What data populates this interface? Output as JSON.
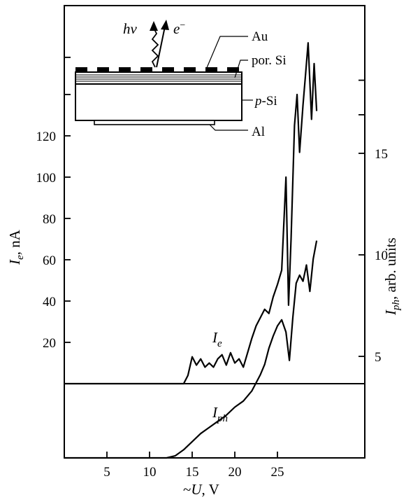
{
  "chart_data": {
    "type": "line",
    "title": "",
    "x_axis": {
      "label_prefix": "~",
      "label_var": "U",
      "label_unit": ", V",
      "range": [
        0,
        35
      ],
      "ticks": [
        5,
        10,
        15,
        20,
        25
      ]
    },
    "y_left": {
      "label_var": "I",
      "label_sub": "e",
      "label_unit": ", nA",
      "range": [
        0,
        170
      ],
      "ticks": [
        20,
        40,
        60,
        80,
        100,
        120
      ]
    },
    "y_right": {
      "label_var": "I",
      "label_sub": "ph",
      "label_unit": ", arb. units",
      "range": [
        0,
        19
      ],
      "ticks": [
        5,
        10,
        15
      ]
    },
    "baseline_value": 0,
    "series": [
      {
        "name_var": "I",
        "name_sub": "e",
        "axis": "left",
        "x": [
          0,
          14,
          14.5,
          15,
          15.5,
          16,
          16.5,
          17,
          17.5,
          18,
          18.5,
          19,
          19.5,
          20,
          20.5,
          21,
          21.5,
          22,
          22.5,
          23,
          23.5,
          24,
          24.5,
          25,
          25.5,
          26,
          26.3,
          26.6,
          27,
          27.3,
          27.6,
          28,
          28.3,
          28.6,
          29,
          29.3,
          29.6
        ],
        "y": [
          0,
          0,
          4,
          13,
          9,
          12,
          8,
          10,
          8,
          12,
          14,
          9,
          15,
          10,
          12,
          8,
          15,
          22,
          28,
          32,
          36,
          34,
          42,
          48,
          55,
          100,
          38,
          70,
          125,
          140,
          112,
          135,
          150,
          165,
          128,
          155,
          132
        ]
      },
      {
        "name_var": "I",
        "name_sub": "ph",
        "axis": "right",
        "x": [
          0,
          12,
          13,
          14,
          15,
          16,
          17,
          18,
          19,
          20,
          21,
          22,
          23,
          23.5,
          24,
          24.5,
          25,
          25.5,
          26,
          26.4,
          26.8,
          27.2,
          27.6,
          28,
          28.4,
          28.8,
          29.2,
          29.6
        ],
        "y": [
          0,
          0,
          0.1,
          0.4,
          0.8,
          1.2,
          1.5,
          1.8,
          2.1,
          2.5,
          2.8,
          3.3,
          4.1,
          4.6,
          5.4,
          6.0,
          6.5,
          6.8,
          6.2,
          4.8,
          6.9,
          8.6,
          9.0,
          8.7,
          9.5,
          8.2,
          9.8,
          10.7
        ]
      }
    ],
    "inset": {
      "symbols": {
        "photon": "hν",
        "electron": "e",
        "electron_charge": "−"
      },
      "layers": [
        "Au",
        "por. Si",
        "p-Si",
        "Al"
      ]
    }
  }
}
